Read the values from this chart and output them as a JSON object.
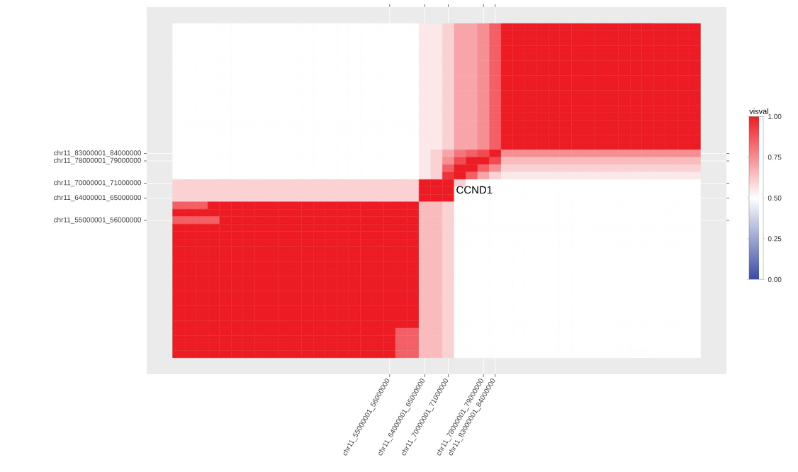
{
  "chart_data": {
    "type": "heatmap",
    "categories": [
      null,
      null,
      null,
      null,
      null,
      null,
      null,
      null,
      null,
      null,
      null,
      null,
      null,
      null,
      null,
      null,
      null,
      null,
      "chr11_55000001_56000000",
      null,
      null,
      "chr11_64000001_65000000",
      null,
      "chr11_70000001_71000000",
      null,
      null,
      "chr11_78000001_79000000",
      "chr11_83000001_84000000",
      null,
      null,
      null,
      null,
      null,
      null,
      null,
      null,
      null,
      null,
      null,
      null,
      null,
      null,
      null,
      null,
      null
    ],
    "y_categories": [
      null,
      null,
      null,
      null,
      null,
      null,
      null,
      null,
      null,
      null,
      null,
      null,
      null,
      null,
      null,
      null,
      null,
      "chr11_83000001_84000000",
      "chr11_78000001_79000000",
      null,
      null,
      "chr11_70000001_71000000",
      null,
      "chr11_64000001_65000000",
      null,
      null,
      "chr11_55000001_56000000",
      null,
      null,
      null,
      null,
      null,
      null,
      null,
      null,
      null,
      null,
      null,
      null,
      null,
      null,
      null,
      null,
      null,
      null
    ],
    "cells": [
      [
        0.5,
        0.5,
        0.5,
        0.5,
        0.5,
        0.5,
        0.5,
        0.5,
        0.5,
        0.5,
        0.5,
        0.5,
        0.5,
        0.5,
        0.5,
        0.5,
        0.5,
        0.5,
        0.5,
        0.5,
        0.5,
        0.55,
        0.55,
        0.6,
        0.7,
        0.7,
        0.75,
        0.85,
        1,
        1,
        1,
        1,
        1,
        1,
        1,
        1,
        1,
        1,
        1,
        1,
        1,
        1,
        1,
        1,
        1
      ],
      [
        0.5,
        0.5,
        0.5,
        0.5,
        0.5,
        0.5,
        0.5,
        0.5,
        0.5,
        0.5,
        0.5,
        0.5,
        0.5,
        0.5,
        0.5,
        0.5,
        0.5,
        0.5,
        0.5,
        0.5,
        0.5,
        0.55,
        0.55,
        0.6,
        0.7,
        0.7,
        0.75,
        0.85,
        1,
        1,
        1,
        1,
        1,
        1,
        1,
        1,
        1,
        1,
        1,
        1,
        1,
        1,
        1,
        1,
        1
      ],
      [
        0.5,
        0.5,
        0.5,
        0.5,
        0.5,
        0.5,
        0.5,
        0.5,
        0.5,
        0.5,
        0.5,
        0.5,
        0.5,
        0.5,
        0.5,
        0.5,
        0.5,
        0.5,
        0.5,
        0.5,
        0.5,
        0.55,
        0.55,
        0.6,
        0.7,
        0.7,
        0.75,
        0.85,
        1,
        1,
        1,
        1,
        1,
        1,
        1,
        1,
        1,
        1,
        1,
        1,
        1,
        1,
        1,
        1,
        1
      ],
      [
        0.5,
        0.5,
        0.5,
        0.5,
        0.5,
        0.5,
        0.5,
        0.5,
        0.5,
        0.5,
        0.5,
        0.5,
        0.5,
        0.5,
        0.5,
        0.5,
        0.5,
        0.5,
        0.5,
        0.5,
        0.5,
        0.55,
        0.55,
        0.6,
        0.7,
        0.7,
        0.75,
        0.85,
        1,
        1,
        1,
        1,
        1,
        1,
        1,
        1,
        1,
        1,
        1,
        1,
        1,
        1,
        1,
        1,
        1
      ],
      [
        0.5,
        0.5,
        0.5,
        0.5,
        0.5,
        0.5,
        0.5,
        0.5,
        0.5,
        0.5,
        0.5,
        0.5,
        0.5,
        0.5,
        0.5,
        0.5,
        0.5,
        0.5,
        0.5,
        0.5,
        0.5,
        0.55,
        0.55,
        0.6,
        0.7,
        0.7,
        0.75,
        0.85,
        1,
        1,
        1,
        1,
        1,
        1,
        1,
        1,
        1,
        1,
        1,
        1,
        1,
        1,
        1,
        1,
        1
      ],
      [
        0.5,
        0.5,
        0.5,
        0.5,
        0.5,
        0.5,
        0.5,
        0.5,
        0.5,
        0.5,
        0.5,
        0.5,
        0.5,
        0.5,
        0.5,
        0.5,
        0.5,
        0.5,
        0.5,
        0.5,
        0.5,
        0.55,
        0.55,
        0.6,
        0.7,
        0.7,
        0.75,
        0.85,
        1,
        1,
        1,
        1,
        1,
        1,
        1,
        1,
        1,
        1,
        1,
        1,
        1,
        1,
        1,
        1,
        1
      ],
      [
        0.5,
        0.5,
        0.5,
        0.5,
        0.5,
        0.5,
        0.5,
        0.5,
        0.5,
        0.5,
        0.5,
        0.5,
        0.5,
        0.5,
        0.5,
        0.5,
        0.5,
        0.5,
        0.5,
        0.5,
        0.5,
        0.55,
        0.55,
        0.6,
        0.7,
        0.7,
        0.75,
        0.85,
        1,
        1,
        1,
        1,
        1,
        1,
        1,
        1,
        1,
        1,
        1,
        1,
        1,
        1,
        1,
        1,
        1
      ],
      [
        0.5,
        0.5,
        0.5,
        0.5,
        0.5,
        0.5,
        0.5,
        0.5,
        0.5,
        0.5,
        0.5,
        0.5,
        0.5,
        0.5,
        0.5,
        0.5,
        0.5,
        0.5,
        0.5,
        0.5,
        0.5,
        0.55,
        0.55,
        0.6,
        0.7,
        0.7,
        0.75,
        0.85,
        1,
        1,
        1,
        1,
        1,
        1,
        1,
        1,
        1,
        1,
        1,
        1,
        1,
        1,
        1,
        1,
        1
      ],
      [
        0.5,
        0.5,
        0.5,
        0.5,
        0.5,
        0.5,
        0.5,
        0.5,
        0.5,
        0.5,
        0.5,
        0.5,
        0.5,
        0.5,
        0.5,
        0.5,
        0.5,
        0.5,
        0.5,
        0.5,
        0.5,
        0.55,
        0.55,
        0.6,
        0.7,
        0.7,
        0.75,
        0.85,
        1,
        1,
        1,
        1,
        1,
        1,
        1,
        1,
        1,
        1,
        1,
        1,
        1,
        1,
        1,
        1,
        1
      ],
      [
        0.5,
        0.5,
        0.5,
        0.5,
        0.5,
        0.5,
        0.5,
        0.5,
        0.5,
        0.5,
        0.5,
        0.5,
        0.5,
        0.5,
        0.5,
        0.5,
        0.5,
        0.5,
        0.5,
        0.5,
        0.5,
        0.55,
        0.55,
        0.6,
        0.7,
        0.7,
        0.75,
        0.85,
        1,
        1,
        1,
        1,
        1,
        1,
        1,
        1,
        1,
        1,
        1,
        1,
        1,
        1,
        1,
        1,
        1
      ],
      [
        0.5,
        0.5,
        0.5,
        0.5,
        0.5,
        0.5,
        0.5,
        0.5,
        0.5,
        0.5,
        0.5,
        0.5,
        0.5,
        0.5,
        0.5,
        0.5,
        0.5,
        0.5,
        0.5,
        0.5,
        0.5,
        0.55,
        0.55,
        0.6,
        0.7,
        0.7,
        0.75,
        0.85,
        1,
        1,
        1,
        1,
        1,
        1,
        1,
        1,
        1,
        1,
        1,
        1,
        1,
        1,
        1,
        1,
        1
      ],
      [
        0.5,
        0.5,
        0.5,
        0.5,
        0.5,
        0.5,
        0.5,
        0.5,
        0.5,
        0.5,
        0.5,
        0.5,
        0.5,
        0.5,
        0.5,
        0.5,
        0.5,
        0.5,
        0.5,
        0.5,
        0.5,
        0.55,
        0.55,
        0.6,
        0.7,
        0.7,
        0.75,
        0.85,
        1,
        1,
        1,
        1,
        1,
        1,
        1,
        1,
        1,
        1,
        1,
        1,
        1,
        1,
        1,
        1,
        1
      ],
      [
        0.5,
        0.5,
        0.5,
        0.5,
        0.5,
        0.5,
        0.5,
        0.5,
        0.5,
        0.5,
        0.5,
        0.5,
        0.5,
        0.5,
        0.5,
        0.5,
        0.5,
        0.5,
        0.5,
        0.5,
        0.5,
        0.55,
        0.55,
        0.6,
        0.7,
        0.7,
        0.75,
        0.85,
        1,
        1,
        1,
        1,
        1,
        1,
        1,
        1,
        1,
        1,
        1,
        1,
        1,
        1,
        1,
        1,
        1
      ],
      [
        0.5,
        0.5,
        0.5,
        0.5,
        0.5,
        0.5,
        0.5,
        0.5,
        0.5,
        0.5,
        0.5,
        0.5,
        0.5,
        0.5,
        0.5,
        0.5,
        0.5,
        0.5,
        0.5,
        0.5,
        0.5,
        0.55,
        0.55,
        0.6,
        0.7,
        0.7,
        0.75,
        0.85,
        1,
        1,
        1,
        1,
        1,
        1,
        1,
        1,
        1,
        1,
        1,
        1,
        1,
        1,
        1,
        1,
        1
      ],
      [
        0.5,
        0.5,
        0.5,
        0.5,
        0.5,
        0.5,
        0.5,
        0.5,
        0.5,
        0.5,
        0.5,
        0.5,
        0.5,
        0.5,
        0.5,
        0.5,
        0.5,
        0.5,
        0.5,
        0.5,
        0.5,
        0.55,
        0.55,
        0.6,
        0.7,
        0.7,
        0.75,
        0.85,
        1,
        1,
        1,
        1,
        1,
        1,
        1,
        1,
        1,
        1,
        1,
        1,
        1,
        1,
        1,
        1,
        1
      ],
      [
        0.5,
        0.5,
        0.5,
        0.5,
        0.5,
        0.5,
        0.5,
        0.5,
        0.5,
        0.5,
        0.5,
        0.5,
        0.5,
        0.5,
        0.5,
        0.5,
        0.5,
        0.5,
        0.5,
        0.5,
        0.5,
        0.55,
        0.55,
        0.6,
        0.7,
        0.7,
        0.75,
        0.85,
        1,
        1,
        1,
        1,
        1,
        1,
        1,
        1,
        1,
        1,
        1,
        1,
        1,
        1,
        1,
        1,
        1
      ],
      [
        0.5,
        0.5,
        0.5,
        0.5,
        0.5,
        0.5,
        0.5,
        0.5,
        0.5,
        0.5,
        0.5,
        0.5,
        0.5,
        0.5,
        0.5,
        0.5,
        0.5,
        0.5,
        0.5,
        0.5,
        0.5,
        0.55,
        0.55,
        0.6,
        0.7,
        0.7,
        0.75,
        0.85,
        1,
        1,
        1,
        1,
        1,
        1,
        1,
        1,
        1,
        1,
        1,
        1,
        1,
        1,
        1,
        1,
        1
      ],
      [
        0.5,
        0.5,
        0.5,
        0.5,
        0.5,
        0.5,
        0.5,
        0.5,
        0.5,
        0.5,
        0.5,
        0.5,
        0.5,
        0.5,
        0.5,
        0.5,
        0.5,
        0.5,
        0.5,
        0.5,
        0.5,
        0.55,
        0.6,
        0.7,
        0.8,
        0.85,
        0.9,
        1,
        0.75,
        0.75,
        0.75,
        0.75,
        0.75,
        0.75,
        0.75,
        0.75,
        0.75,
        0.75,
        0.75,
        0.75,
        0.75,
        0.75,
        0.75,
        0.75,
        0.75
      ],
      [
        0.5,
        0.5,
        0.5,
        0.5,
        0.5,
        0.5,
        0.5,
        0.5,
        0.5,
        0.5,
        0.5,
        0.5,
        0.5,
        0.5,
        0.5,
        0.5,
        0.5,
        0.5,
        0.5,
        0.5,
        0.5,
        0.55,
        0.6,
        0.75,
        0.9,
        1,
        1,
        0.9,
        0.65,
        0.65,
        0.65,
        0.65,
        0.65,
        0.65,
        0.65,
        0.65,
        0.65,
        0.65,
        0.65,
        0.65,
        0.65,
        0.65,
        0.65,
        0.65,
        0.65
      ],
      [
        0.5,
        0.5,
        0.5,
        0.5,
        0.5,
        0.5,
        0.5,
        0.5,
        0.5,
        0.5,
        0.5,
        0.5,
        0.5,
        0.5,
        0.5,
        0.5,
        0.5,
        0.5,
        0.5,
        0.5,
        0.5,
        0.55,
        0.6,
        0.85,
        1,
        1,
        0.85,
        0.75,
        0.6,
        0.6,
        0.6,
        0.6,
        0.6,
        0.6,
        0.6,
        0.6,
        0.6,
        0.6,
        0.6,
        0.6,
        0.6,
        0.6,
        0.6,
        0.6,
        0.6
      ],
      [
        0.5,
        0.5,
        0.5,
        0.5,
        0.5,
        0.5,
        0.5,
        0.5,
        0.5,
        0.5,
        0.5,
        0.5,
        0.5,
        0.5,
        0.5,
        0.5,
        0.5,
        0.5,
        0.5,
        0.5,
        0.5,
        0.55,
        0.6,
        0.95,
        1,
        0.85,
        0.7,
        0.6,
        0.55,
        0.55,
        0.55,
        0.55,
        0.55,
        0.55,
        0.55,
        0.55,
        0.55,
        0.55,
        0.55,
        0.55,
        0.55,
        0.55,
        0.55,
        0.55,
        0.55
      ],
      [
        0.6,
        0.6,
        0.6,
        0.6,
        0.6,
        0.6,
        0.6,
        0.6,
        0.6,
        0.6,
        0.6,
        0.6,
        0.6,
        0.6,
        0.6,
        0.6,
        0.6,
        0.6,
        0.6,
        0.6,
        0.6,
        1,
        1,
        1,
        0.6,
        0.5,
        0.5,
        0.5,
        0.5,
        0.5,
        0.5,
        0.5,
        0.5,
        0.5,
        0.5,
        0.5,
        0.5,
        0.5,
        0.5,
        0.5,
        0.5,
        0.5,
        0.5,
        0.5,
        0.5
      ],
      [
        0.6,
        0.6,
        0.6,
        0.6,
        0.6,
        0.6,
        0.6,
        0.6,
        0.6,
        0.6,
        0.6,
        0.6,
        0.6,
        0.6,
        0.6,
        0.6,
        0.6,
        0.6,
        0.6,
        0.6,
        0.6,
        1,
        1,
        1,
        0.5,
        0.5,
        0.5,
        0.5,
        0.5,
        0.5,
        0.5,
        0.5,
        0.5,
        0.5,
        0.5,
        0.5,
        0.5,
        0.5,
        0.5,
        0.5,
        0.5,
        0.5,
        0.5,
        0.5,
        0.5
      ],
      [
        0.6,
        0.6,
        0.6,
        0.6,
        0.6,
        0.6,
        0.6,
        0.6,
        0.6,
        0.6,
        0.6,
        0.6,
        0.6,
        0.6,
        0.6,
        0.6,
        0.6,
        0.6,
        0.6,
        0.6,
        0.6,
        1,
        1,
        1,
        0.5,
        0.5,
        0.5,
        0.5,
        0.5,
        0.5,
        0.5,
        0.5,
        0.5,
        0.5,
        0.5,
        0.5,
        0.5,
        0.5,
        0.5,
        0.5,
        0.5,
        0.5,
        0.5,
        0.5,
        0.5
      ],
      [
        0.85,
        0.85,
        0.85,
        1,
        1,
        1,
        1,
        1,
        1,
        1,
        1,
        1,
        1,
        1,
        1,
        1,
        1,
        1,
        1,
        1,
        1,
        0.65,
        0.65,
        0.6,
        0.5,
        0.5,
        0.5,
        0.5,
        0.5,
        0.5,
        0.5,
        0.5,
        0.5,
        0.5,
        0.5,
        0.5,
        0.5,
        0.5,
        0.5,
        0.5,
        0.5,
        0.5,
        0.5,
        0.5,
        0.5
      ],
      [
        1,
        1,
        1,
        1,
        1,
        1,
        1,
        1,
        1,
        1,
        1,
        1,
        1,
        1,
        1,
        1,
        1,
        1,
        1,
        1,
        1,
        0.65,
        0.65,
        0.6,
        0.5,
        0.5,
        0.5,
        0.5,
        0.5,
        0.5,
        0.5,
        0.5,
        0.5,
        0.5,
        0.5,
        0.5,
        0.5,
        0.5,
        0.5,
        0.5,
        0.5,
        0.5,
        0.5,
        0.5,
        0.5
      ],
      [
        0.85,
        0.85,
        0.85,
        0.85,
        1,
        1,
        1,
        1,
        1,
        1,
        1,
        1,
        1,
        1,
        1,
        1,
        1,
        1,
        1,
        1,
        1,
        0.65,
        0.65,
        0.6,
        0.5,
        0.5,
        0.5,
        0.5,
        0.5,
        0.5,
        0.5,
        0.5,
        0.5,
        0.5,
        0.5,
        0.5,
        0.5,
        0.5,
        0.5,
        0.5,
        0.5,
        0.5,
        0.5,
        0.5,
        0.5
      ],
      [
        1,
        1,
        1,
        1,
        1,
        1,
        1,
        1,
        1,
        1,
        1,
        1,
        1,
        1,
        1,
        1,
        1,
        1,
        1,
        1,
        1,
        0.65,
        0.65,
        0.6,
        0.5,
        0.5,
        0.5,
        0.5,
        0.5,
        0.5,
        0.5,
        0.5,
        0.5,
        0.5,
        0.5,
        0.5,
        0.5,
        0.5,
        0.5,
        0.5,
        0.5,
        0.5,
        0.5,
        0.5,
        0.5
      ],
      [
        1,
        1,
        1,
        1,
        1,
        1,
        1,
        1,
        1,
        1,
        1,
        1,
        1,
        1,
        1,
        1,
        1,
        1,
        1,
        1,
        1,
        0.65,
        0.65,
        0.6,
        0.5,
        0.5,
        0.5,
        0.5,
        0.5,
        0.5,
        0.5,
        0.5,
        0.5,
        0.5,
        0.5,
        0.5,
        0.5,
        0.5,
        0.5,
        0.5,
        0.5,
        0.5,
        0.5,
        0.5,
        0.5
      ],
      [
        1,
        1,
        1,
        1,
        1,
        1,
        1,
        1,
        1,
        1,
        1,
        1,
        1,
        1,
        1,
        1,
        1,
        1,
        1,
        1,
        1,
        0.65,
        0.65,
        0.6,
        0.5,
        0.5,
        0.5,
        0.5,
        0.5,
        0.5,
        0.5,
        0.5,
        0.5,
        0.5,
        0.5,
        0.5,
        0.5,
        0.5,
        0.5,
        0.5,
        0.5,
        0.5,
        0.5,
        0.5,
        0.5
      ],
      [
        1,
        1,
        1,
        1,
        1,
        1,
        1,
        1,
        1,
        1,
        1,
        1,
        1,
        1,
        1,
        1,
        1,
        1,
        1,
        1,
        1,
        0.65,
        0.65,
        0.6,
        0.5,
        0.5,
        0.5,
        0.5,
        0.5,
        0.5,
        0.5,
        0.5,
        0.5,
        0.5,
        0.5,
        0.5,
        0.5,
        0.5,
        0.5,
        0.5,
        0.5,
        0.5,
        0.5,
        0.5,
        0.5
      ],
      [
        1,
        1,
        1,
        1,
        1,
        1,
        1,
        1,
        1,
        1,
        1,
        1,
        1,
        1,
        1,
        1,
        1,
        1,
        1,
        1,
        1,
        0.65,
        0.65,
        0.6,
        0.5,
        0.5,
        0.5,
        0.5,
        0.5,
        0.5,
        0.5,
        0.5,
        0.5,
        0.5,
        0.5,
        0.5,
        0.5,
        0.5,
        0.5,
        0.5,
        0.5,
        0.5,
        0.5,
        0.5,
        0.5
      ],
      [
        1,
        1,
        1,
        1,
        1,
        1,
        1,
        1,
        1,
        1,
        1,
        1,
        1,
        1,
        1,
        1,
        1,
        1,
        1,
        1,
        1,
        0.65,
        0.65,
        0.6,
        0.5,
        0.5,
        0.5,
        0.5,
        0.5,
        0.5,
        0.5,
        0.5,
        0.5,
        0.5,
        0.5,
        0.5,
        0.5,
        0.5,
        0.5,
        0.5,
        0.5,
        0.5,
        0.5,
        0.5,
        0.5
      ],
      [
        1,
        1,
        1,
        1,
        1,
        1,
        1,
        1,
        1,
        1,
        1,
        1,
        1,
        1,
        1,
        1,
        1,
        1,
        1,
        1,
        1,
        0.65,
        0.65,
        0.6,
        0.5,
        0.5,
        0.5,
        0.5,
        0.5,
        0.5,
        0.5,
        0.5,
        0.5,
        0.5,
        0.5,
        0.5,
        0.5,
        0.5,
        0.5,
        0.5,
        0.5,
        0.5,
        0.5,
        0.5,
        0.5
      ],
      [
        1,
        1,
        1,
        1,
        1,
        1,
        1,
        1,
        1,
        1,
        1,
        1,
        1,
        1,
        1,
        1,
        1,
        1,
        1,
        1,
        1,
        0.65,
        0.65,
        0.6,
        0.5,
        0.5,
        0.5,
        0.5,
        0.5,
        0.5,
        0.5,
        0.5,
        0.5,
        0.5,
        0.5,
        0.5,
        0.5,
        0.5,
        0.5,
        0.5,
        0.5,
        0.5,
        0.5,
        0.5,
        0.5
      ],
      [
        1,
        1,
        1,
        1,
        1,
        1,
        1,
        1,
        1,
        1,
        1,
        1,
        1,
        1,
        1,
        1,
        1,
        1,
        1,
        1,
        1,
        0.65,
        0.65,
        0.6,
        0.5,
        0.5,
        0.5,
        0.5,
        0.5,
        0.5,
        0.5,
        0.5,
        0.5,
        0.5,
        0.5,
        0.5,
        0.5,
        0.5,
        0.5,
        0.5,
        0.5,
        0.5,
        0.5,
        0.5,
        0.5
      ],
      [
        1,
        1,
        1,
        1,
        1,
        1,
        1,
        1,
        1,
        1,
        1,
        1,
        1,
        1,
        1,
        1,
        1,
        1,
        1,
        1,
        1,
        0.65,
        0.65,
        0.6,
        0.5,
        0.5,
        0.5,
        0.5,
        0.5,
        0.5,
        0.5,
        0.5,
        0.5,
        0.5,
        0.5,
        0.5,
        0.5,
        0.5,
        0.5,
        0.5,
        0.5,
        0.5,
        0.5,
        0.5,
        0.5
      ],
      [
        1,
        1,
        1,
        1,
        1,
        1,
        1,
        1,
        1,
        1,
        1,
        1,
        1,
        1,
        1,
        1,
        1,
        1,
        1,
        1,
        1,
        0.65,
        0.65,
        0.6,
        0.5,
        0.5,
        0.5,
        0.5,
        0.5,
        0.5,
        0.5,
        0.5,
        0.5,
        0.5,
        0.5,
        0.5,
        0.5,
        0.5,
        0.5,
        0.5,
        0.5,
        0.5,
        0.5,
        0.5,
        0.5
      ],
      [
        1,
        1,
        1,
        1,
        1,
        1,
        1,
        1,
        1,
        1,
        1,
        1,
        1,
        1,
        1,
        1,
        1,
        1,
        1,
        1,
        1,
        0.65,
        0.65,
        0.6,
        0.5,
        0.5,
        0.5,
        0.5,
        0.5,
        0.5,
        0.5,
        0.5,
        0.5,
        0.5,
        0.5,
        0.5,
        0.5,
        0.5,
        0.5,
        0.5,
        0.5,
        0.5,
        0.5,
        0.5,
        0.5
      ],
      [
        1,
        1,
        1,
        1,
        1,
        1,
        1,
        1,
        1,
        1,
        1,
        1,
        1,
        1,
        1,
        1,
        1,
        1,
        1,
        1,
        1,
        0.65,
        0.65,
        0.6,
        0.5,
        0.5,
        0.5,
        0.5,
        0.5,
        0.5,
        0.5,
        0.5,
        0.5,
        0.5,
        0.5,
        0.5,
        0.5,
        0.5,
        0.5,
        0.5,
        0.5,
        0.5,
        0.5,
        0.5,
        0.5
      ],
      [
        1,
        1,
        1,
        1,
        1,
        1,
        1,
        1,
        1,
        1,
        1,
        1,
        1,
        1,
        1,
        1,
        1,
        1,
        1,
        1,
        1,
        0.65,
        0.65,
        0.6,
        0.5,
        0.5,
        0.5,
        0.5,
        0.5,
        0.5,
        0.5,
        0.5,
        0.5,
        0.5,
        0.5,
        0.5,
        0.5,
        0.5,
        0.5,
        0.5,
        0.5,
        0.5,
        0.5,
        0.5,
        0.5
      ],
      [
        1,
        1,
        1,
        1,
        1,
        1,
        1,
        1,
        1,
        1,
        1,
        1,
        1,
        1,
        1,
        1,
        1,
        1,
        1,
        0.85,
        0.85,
        0.65,
        0.65,
        0.6,
        0.5,
        0.5,
        0.5,
        0.5,
        0.5,
        0.5,
        0.5,
        0.5,
        0.5,
        0.5,
        0.5,
        0.5,
        0.5,
        0.5,
        0.5,
        0.5,
        0.5,
        0.5,
        0.5,
        0.5,
        0.5
      ],
      [
        1,
        1,
        1,
        1,
        1,
        1,
        1,
        1,
        1,
        1,
        1,
        1,
        1,
        1,
        1,
        1,
        1,
        1,
        1,
        0.85,
        0.85,
        0.65,
        0.65,
        0.6,
        0.5,
        0.5,
        0.5,
        0.5,
        0.5,
        0.5,
        0.5,
        0.5,
        0.5,
        0.5,
        0.5,
        0.5,
        0.5,
        0.5,
        0.5,
        0.5,
        0.5,
        0.5,
        0.5,
        0.5,
        0.5
      ],
      [
        1,
        1,
        1,
        1,
        1,
        1,
        1,
        1,
        1,
        1,
        1,
        1,
        1,
        1,
        1,
        1,
        1,
        1,
        1,
        0.85,
        0.85,
        0.65,
        0.65,
        0.6,
        0.5,
        0.5,
        0.5,
        0.5,
        0.5,
        0.5,
        0.5,
        0.5,
        0.5,
        0.5,
        0.5,
        0.5,
        0.5,
        0.5,
        0.5,
        0.5,
        0.5,
        0.5,
        0.5,
        0.5,
        0.5
      ],
      [
        1,
        1,
        1,
        1,
        1,
        1,
        1,
        1,
        1,
        1,
        1,
        1,
        1,
        1,
        1,
        1,
        1,
        1,
        1,
        0.85,
        0.85,
        0.65,
        0.65,
        0.6,
        0.5,
        0.5,
        0.5,
        0.5,
        0.5,
        0.5,
        0.5,
        0.5,
        0.5,
        0.5,
        0.5,
        0.5,
        0.5,
        0.5,
        0.5,
        0.5,
        0.5,
        0.5,
        0.5,
        0.5,
        0.5
      ]
    ],
    "clabel": "visval",
    "clim": [
      0,
      1
    ],
    "cticks": [
      {
        "value": 0,
        "label": "0.00"
      },
      {
        "value": 0.25,
        "label": "0.25"
      },
      {
        "value": 0.5,
        "label": "0.50"
      },
      {
        "value": 0.75,
        "label": "0.75"
      },
      {
        "value": 1,
        "label": "1.00"
      }
    ],
    "grid": true,
    "annotations": [
      "CCND1"
    ]
  }
}
